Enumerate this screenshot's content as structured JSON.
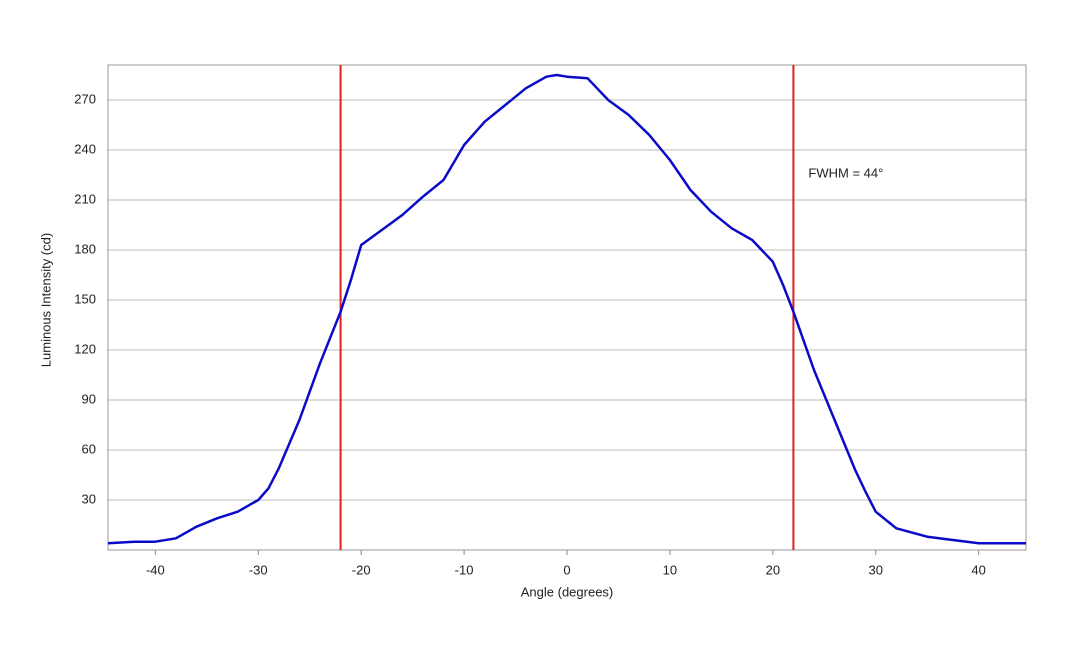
{
  "chart_data": {
    "type": "line",
    "x_label": "Angle (degrees)",
    "y_label": "Luminous Intensity (cd)",
    "annotation": "FWHM = 44°",
    "x": [
      -44.6,
      -42,
      -40,
      -38,
      -36,
      -34,
      -32,
      -30,
      -29,
      -28,
      -26,
      -24,
      -22,
      -21,
      -20,
      -18,
      -16,
      -14,
      -12,
      -10,
      -8,
      -6,
      -4,
      -2,
      -1,
      0,
      2,
      4,
      6,
      8,
      10,
      12,
      14,
      16,
      18,
      20,
      21,
      22,
      24,
      26,
      28,
      29,
      30,
      32,
      35,
      40,
      44.6
    ],
    "series": [
      {
        "name": "Intensity",
        "color": "#0a0ac8",
        "values": [
          4,
          5,
          5,
          7,
          14,
          19,
          23,
          30,
          37,
          49,
          78,
          112,
          143,
          162,
          183,
          192,
          201,
          212,
          222,
          243,
          257,
          267,
          277,
          284,
          285,
          284,
          283,
          270,
          261,
          249,
          234,
          216,
          203,
          193,
          186,
          173,
          159,
          143,
          108,
          78,
          48,
          35,
          23,
          13,
          8,
          4,
          4
        ]
      }
    ],
    "vlines": [
      -22,
      22
    ],
    "vline_color": "#e02020",
    "xlim": [
      -44.6,
      44.6
    ],
    "ylim": [
      0,
      291
    ],
    "xticks": [
      -40,
      -30,
      -20,
      -10,
      0,
      10,
      20,
      30,
      40
    ],
    "yticks": [
      30,
      60,
      90,
      120,
      150,
      180,
      210,
      240,
      270
    ],
    "grid": true
  }
}
